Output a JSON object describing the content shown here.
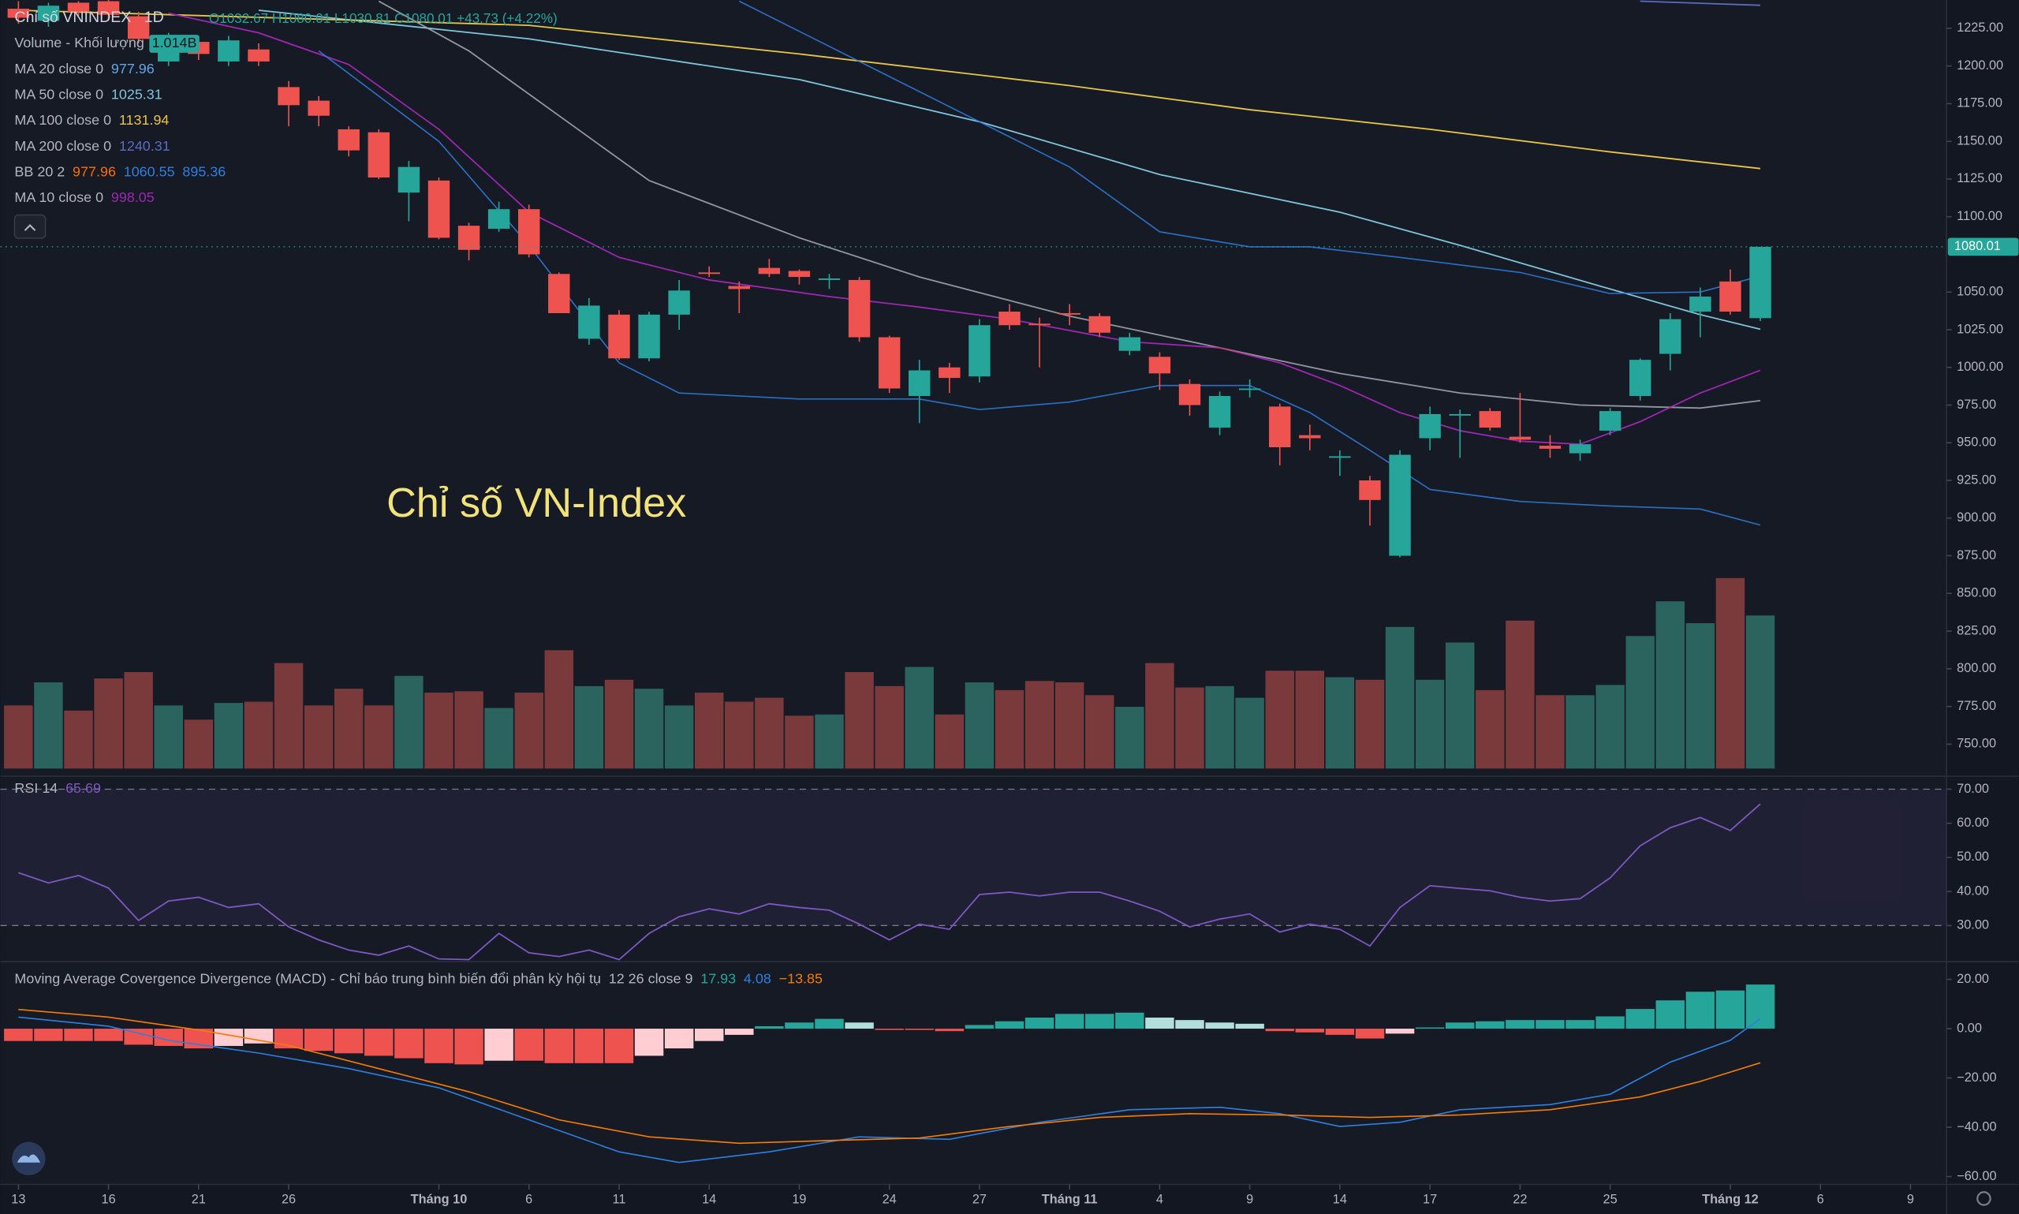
{
  "chart_data": [
    {
      "type": "candlestick",
      "title": "Chỉ số VNINDEX",
      "interval": "1D",
      "subtitle": "O1032.67 H1080.01 L1030.81 C1080.01 +43.73 (+4.22%)",
      "annotation": "Chỉ số VN-Index",
      "xlim": [
        -0.6,
        64.2
      ],
      "xticks": [
        {
          "value": 0,
          "label": "13"
        },
        {
          "value": 3,
          "label": "16"
        },
        {
          "value": 6,
          "label": "21"
        },
        {
          "value": 9,
          "label": "26"
        },
        {
          "value": 14,
          "label": "Tháng 10"
        },
        {
          "value": 17,
          "label": "6"
        },
        {
          "value": 20,
          "label": "11"
        },
        {
          "value": 23,
          "label": "14"
        },
        {
          "value": 26,
          "label": "19"
        },
        {
          "value": 29,
          "label": "24"
        },
        {
          "value": 32,
          "label": "27"
        },
        {
          "value": 35,
          "label": "Tháng 11"
        },
        {
          "value": 38,
          "label": "4"
        },
        {
          "value": 41,
          "label": "9"
        },
        {
          "value": 44,
          "label": "14"
        },
        {
          "value": 47,
          "label": "17"
        },
        {
          "value": 50,
          "label": "22"
        },
        {
          "value": 53,
          "label": "25"
        },
        {
          "value": 57,
          "label": "Tháng 12"
        },
        {
          "value": 60,
          "label": "6"
        },
        {
          "value": 63,
          "label": "9"
        }
      ],
      "ylim": [
        731.2,
        1243.8
      ],
      "yticks": [
        {
          "value": 1225,
          "label": "1225.00"
        },
        {
          "value": 1200,
          "label": "1200.00"
        },
        {
          "value": 1175,
          "label": "1175.00"
        },
        {
          "value": 1150,
          "label": "1150.00"
        },
        {
          "value": 1125,
          "label": "1125.00"
        },
        {
          "value": 1100,
          "label": "1100.00"
        },
        {
          "value": 1050,
          "label": "1050.00"
        },
        {
          "value": 1025,
          "label": "1025.00"
        },
        {
          "value": 1000,
          "label": "1000.00"
        },
        {
          "value": 975,
          "label": "975.00"
        },
        {
          "value": 950,
          "label": "950.00"
        },
        {
          "value": 925,
          "label": "925.00"
        },
        {
          "value": 900,
          "label": "900.00"
        },
        {
          "value": 875,
          "label": "875.00"
        },
        {
          "value": 850,
          "label": "850.00"
        },
        {
          "value": 825,
          "label": "825.00"
        },
        {
          "value": 800,
          "label": "800.00"
        },
        {
          "value": 775,
          "label": "775.00"
        },
        {
          "value": 750,
          "label": "750.00"
        }
      ],
      "colors": {
        "up": "#26a69a",
        "down": "#ef5350"
      },
      "open": [
        1238,
        1230,
        1242,
        1243,
        1233,
        1203,
        1216,
        1203,
        1211,
        1186,
        1177,
        1158,
        1156,
        1116,
        1124,
        1094,
        1092,
        1105,
        1062,
        1019,
        1035,
        1006,
        1035,
        1063,
        1054,
        1066,
        1064,
        1058,
        1058,
        1020,
        981,
        1000,
        994,
        1037,
        1029,
        1036,
        1034,
        1011,
        1007,
        989,
        960,
        985,
        974,
        955,
        940,
        925,
        875,
        953,
        968,
        971,
        954,
        948,
        943,
        958,
        981,
        1009,
        1037,
        1057,
        1032.67
      ],
      "high": [
        1243,
        1242,
        1243,
        1244,
        1236,
        1222,
        1220,
        1220,
        1215,
        1190,
        1180,
        1160,
        1158,
        1137,
        1126,
        1096,
        1110,
        1108,
        1063,
        1046,
        1038,
        1037,
        1058,
        1067,
        1057,
        1072,
        1065,
        1062,
        1060,
        1021,
        1005,
        1003,
        1032,
        1042,
        1033,
        1042,
        1036,
        1023,
        1010,
        992,
        984,
        992,
        976,
        962,
        945,
        928,
        945,
        974,
        972,
        973,
        983,
        955,
        952,
        973,
        1006,
        1036,
        1053,
        1065,
        1080.01
      ],
      "low": [
        1228,
        1226,
        1233,
        1230,
        1215,
        1200,
        1204,
        1200,
        1200,
        1160,
        1160,
        1140,
        1125,
        1097,
        1085,
        1071,
        1090,
        1073,
        1036,
        1015,
        1005,
        1004,
        1025,
        1060,
        1036,
        1060,
        1055,
        1052,
        1017,
        983,
        963,
        983,
        990,
        1025,
        1000,
        1028,
        1020,
        1008,
        985,
        968,
        955,
        980,
        935,
        945,
        928,
        895,
        874,
        945,
        940,
        958,
        950,
        940,
        938,
        955,
        978,
        998,
        1020,
        1035,
        1030.81
      ],
      "close": [
        1232,
        1240,
        1236,
        1234,
        1218,
        1218,
        1208,
        1217,
        1203,
        1174,
        1167,
        1144,
        1126,
        1133,
        1086,
        1078,
        1105,
        1075,
        1036,
        1041,
        1006,
        1035,
        1051,
        1062,
        1052,
        1062,
        1060,
        1059,
        1020,
        986,
        998,
        993,
        1028,
        1028,
        1028,
        1035,
        1023,
        1020,
        996,
        975,
        981,
        986,
        947,
        953,
        941,
        912,
        942,
        969,
        969,
        960,
        952,
        946,
        949,
        971,
        1005,
        1032,
        1047,
        1037,
        1080.01
      ],
      "overlays": [
        {
          "name": "MA 20 close 0",
          "color": "#5ea7e8",
          "x": [
            12,
            15,
            18,
            21,
            26,
            30,
            35,
            40,
            44,
            48,
            52,
            56,
            58
          ],
          "values": [
            1243,
            1210,
            1167,
            1124,
            1086,
            1060,
            1034,
            1013,
            996,
            983,
            975,
            973,
            977.96
          ]
        },
        {
          "name": "MA 50 close 0",
          "color": "#7fc4dc",
          "x": [
            8,
            17,
            26,
            32,
            38,
            44,
            48,
            53,
            56,
            58
          ],
          "values": [
            1237,
            1218,
            1191,
            1163,
            1128,
            1103,
            1081,
            1052,
            1035,
            1025.31
          ]
        },
        {
          "name": "MA 100 close 0",
          "color": "#e8c547",
          "x": [
            0,
            17,
            26,
            35,
            41,
            47,
            53,
            58
          ],
          "values": [
            1237,
            1227,
            1208,
            1187,
            1171,
            1158,
            1143,
            1131.94
          ]
        },
        {
          "name": "MA 200 close 0",
          "color": "#5c6bc0",
          "x": [
            54,
            58
          ],
          "values": [
            1243,
            1240.31
          ]
        },
        {
          "name": "MA 10 close 0",
          "color": "#9c27b0",
          "x": [
            5,
            8,
            11,
            14,
            17,
            20,
            23,
            27,
            30,
            33,
            37,
            40,
            42,
            44,
            46,
            48,
            50,
            52,
            54,
            56,
            58
          ],
          "values": [
            1235,
            1222,
            1201,
            1158,
            1103,
            1073,
            1058,
            1047,
            1040,
            1032,
            1017,
            1013,
            1003,
            988,
            970,
            958,
            951,
            949,
            964,
            983,
            998.05
          ]
        }
      ],
      "bollinger": {
        "name": "BB 20 2",
        "colors": [
          "#ff6d00",
          "#2f7fe0",
          "#2f7fe0"
        ],
        "basis": {
          "x": [
            12,
            15,
            18,
            21,
            26,
            30,
            35,
            40,
            44,
            48,
            52,
            56,
            58
          ],
          "values": [
            1243,
            1210,
            1167,
            1124,
            1086,
            1060,
            1034,
            1013,
            996,
            983,
            975,
            973,
            977.96
          ]
        },
        "upper": {
          "x": [
            24,
            29,
            35,
            38,
            41,
            43,
            46,
            50,
            53,
            56,
            58
          ],
          "values": [
            1243,
            1193,
            1133,
            1090,
            1080,
            1080,
            1073,
            1063,
            1049,
            1050,
            1060.55
          ]
        },
        "lower": {
          "x": [
            10,
            14,
            17,
            20,
            22,
            26,
            30,
            32,
            35,
            38,
            41,
            43,
            45,
            47,
            50,
            53,
            56,
            58
          ],
          "values": [
            1210,
            1150,
            1081,
            1003,
            983,
            979,
            979,
            972,
            977,
            988,
            988,
            970,
            945,
            919,
            911,
            908,
            906,
            895.36
          ]
        }
      }
    },
    {
      "type": "bar",
      "name": "Volume - Khối lượng",
      "legend_label": "1.014B",
      "colors": {
        "up": "#2b635e",
        "down": "#7a3a3c"
      },
      "ylim": [
        0,
        4.4
      ],
      "values": [
        0.418,
        0.571,
        0.384,
        0.597,
        0.639,
        0.418,
        0.324,
        0.435,
        0.443,
        0.699,
        0.418,
        0.529,
        0.418,
        0.614,
        0.503,
        0.512,
        0.401,
        0.503,
        0.784,
        0.546,
        0.588,
        0.529,
        0.418,
        0.503,
        0.443,
        0.469,
        0.35,
        0.358,
        0.639,
        0.546,
        0.673,
        0.358,
        0.571,
        0.52,
        0.58,
        0.571,
        0.486,
        0.409,
        0.699,
        0.537,
        0.546,
        0.469,
        0.648,
        0.648,
        0.605,
        0.588,
        0.938,
        0.588,
        0.835,
        0.52,
        0.98,
        0.486,
        0.486,
        0.554,
        0.878,
        1.108,
        0.963,
        1.262,
        1.014
      ]
    },
    {
      "type": "line",
      "name": "RSI 14",
      "color": "#7e57c2",
      "ylim": [
        19.4,
        73.8
      ],
      "band": [
        30,
        70
      ],
      "yticks": [
        {
          "value": 70,
          "label": "70.00"
        },
        {
          "value": 60,
          "label": "60.00"
        },
        {
          "value": 50,
          "label": "50.00"
        },
        {
          "value": 40,
          "label": "40.00"
        },
        {
          "value": 30,
          "label": "30.00"
        }
      ],
      "values": [
        45.5,
        42.5,
        44.7,
        41,
        31.5,
        37.2,
        38.3,
        35.3,
        36.4,
        29.6,
        25.8,
        22.8,
        21.3,
        24,
        20.2,
        20,
        27.7,
        22,
        20.9,
        22.8,
        20,
        27.7,
        32.6,
        34.9,
        33.4,
        36.4,
        35.3,
        34.5,
        30.4,
        25.8,
        30.4,
        28.9,
        39.1,
        39.8,
        38.7,
        39.8,
        39.8,
        37.2,
        34.2,
        29.6,
        31.9,
        33.4,
        28.1,
        30.4,
        28.9,
        24,
        35.3,
        41.7,
        40.9,
        40.2,
        38.3,
        37.2,
        37.9,
        44,
        53.4,
        58.7,
        61.7,
        57.9,
        65.69
      ]
    },
    {
      "type": "macd",
      "name": "Moving Average Covergence Divergence (MACD) - Chỉ báo trung bình biến đổi phân kỳ hội tụ",
      "params": "12 26 close 9",
      "ylim": [
        -63.2,
        27.2
      ],
      "yticks": [
        {
          "value": 20,
          "label": "20.00"
        },
        {
          "value": 0,
          "label": "0.00"
        },
        {
          "value": -20,
          "label": "−20.00"
        },
        {
          "value": -40,
          "label": "−40.00"
        },
        {
          "value": -60,
          "label": "−60.00"
        }
      ],
      "colors": {
        "pos_up": "#26a69a",
        "pos_down": "#b2dfdb",
        "neg_down": "#ef5350",
        "neg_up": "#ffcdd2"
      },
      "histogram": [
        -5,
        -5,
        -5,
        -5,
        -6.5,
        -7,
        -8,
        -7,
        -6,
        -8,
        -9,
        -10,
        -11,
        -12,
        -14,
        -14.5,
        -13,
        -13,
        -14,
        -14,
        -14,
        -11,
        -8,
        -5,
        -2.5,
        1,
        2.5,
        4,
        2.5,
        -0.5,
        -0.5,
        -1,
        1.5,
        3,
        4.5,
        6,
        6,
        6.5,
        4.5,
        3.5,
        2.5,
        2,
        -1,
        -1.5,
        -2.5,
        -4,
        -2,
        0.5,
        2.5,
        3,
        3.5,
        3.5,
        3.5,
        5,
        8,
        11.5,
        15,
        15.5,
        17.93
      ],
      "macd": {
        "color": "#2f7fe0",
        "x": [
          0,
          3,
          5,
          8,
          11,
          14,
          17,
          20,
          22,
          25,
          28,
          31,
          34,
          37,
          40,
          42,
          44,
          46,
          48,
          51,
          53,
          55,
          57,
          58
        ],
        "values": [
          4.7,
          1,
          -4.7,
          -9.9,
          -16.2,
          -24,
          -37,
          -50,
          -54.3,
          -50,
          -43.9,
          -44.9,
          -38,
          -32.9,
          -31.9,
          -34.5,
          -39.7,
          -38,
          -32.9,
          -30.8,
          -26.6,
          -13.6,
          -4.7,
          4.08
        ]
      },
      "signal": {
        "color": "#f57c00",
        "last_label": "−13.85",
        "x": [
          0,
          3,
          6,
          9,
          12,
          15,
          18,
          21,
          24,
          27,
          30,
          33,
          36,
          39,
          42,
          45,
          48,
          51,
          54,
          56,
          58
        ],
        "values": [
          7.8,
          4.7,
          -0.5,
          -6.8,
          -16.2,
          -25.6,
          -37,
          -43.9,
          -46.5,
          -45.4,
          -44.4,
          -39.7,
          -36,
          -34.5,
          -35,
          -36,
          -35,
          -32.9,
          -27.7,
          -21.4,
          -13.85
        ]
      }
    }
  ]
}
